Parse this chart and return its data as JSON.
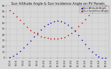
{
  "title": "Sun Altitude Angle & Sun Incidence Angle on PV Panels",
  "bg_color": "#d8d8d8",
  "plot_bg": "#d8d8d8",
  "grid_color": "#aaaaaa",
  "legend_labels": [
    "Sun Altitude Angle",
    "Sun Incidence Angle"
  ],
  "legend_colors": [
    "#0000cc",
    "#cc0000"
  ],
  "blue_x": [
    5.0,
    5.5,
    6.0,
    6.5,
    7.0,
    7.5,
    8.0,
    8.5,
    9.0,
    9.5,
    10.0,
    10.5,
    11.0,
    11.5,
    12.0,
    12.5,
    13.0,
    13.5,
    14.0,
    14.5,
    15.0,
    15.5,
    16.0,
    16.5,
    17.0,
    17.5,
    18.0,
    18.5,
    19.0
  ],
  "blue_y": [
    1,
    3,
    7,
    12,
    18,
    24,
    30,
    37,
    43,
    49,
    54,
    58,
    61,
    63,
    64,
    63,
    61,
    57,
    52,
    46,
    39,
    31,
    24,
    17,
    11,
    6,
    2,
    0,
    0
  ],
  "red_x": [
    5.0,
    5.5,
    6.0,
    6.5,
    7.0,
    7.5,
    8.0,
    8.5,
    9.0,
    9.5,
    10.0,
    10.5,
    11.0,
    11.5,
    12.0,
    12.5,
    13.0,
    13.5,
    14.0,
    14.5,
    15.0,
    15.5,
    16.0,
    16.5,
    17.0,
    17.5,
    18.0,
    18.5,
    19.0
  ],
  "red_y": [
    82,
    77,
    71,
    65,
    59,
    53,
    48,
    44,
    40,
    37,
    35,
    34,
    33,
    33,
    33,
    34,
    36,
    39,
    43,
    48,
    54,
    60,
    67,
    73,
    78,
    83,
    87,
    89,
    90
  ],
  "xlim": [
    4.5,
    19.5
  ],
  "ylim": [
    0,
    90
  ],
  "tick_color": "#222222",
  "yticks": [
    0,
    10,
    20,
    30,
    40,
    50,
    60,
    70,
    80,
    90
  ],
  "xtick_labels": [
    "5:0:0",
    "6:0:0",
    "7:0:0",
    "8:0:0",
    "9:0:0",
    "10:0:0",
    "11:0:0",
    "12:0:0",
    "13:0:0",
    "14:0:0",
    "15:0:0",
    "16:0:0",
    "17:0:0",
    "18:0:0",
    "19:0:0"
  ],
  "xtick_vals": [
    5,
    6,
    7,
    8,
    9,
    10,
    11,
    12,
    13,
    14,
    15,
    16,
    17,
    18,
    19
  ],
  "dot_size": 1.5,
  "title_fontsize": 3.5,
  "tick_fontsize": 2.5,
  "legend_fontsize": 2.5
}
